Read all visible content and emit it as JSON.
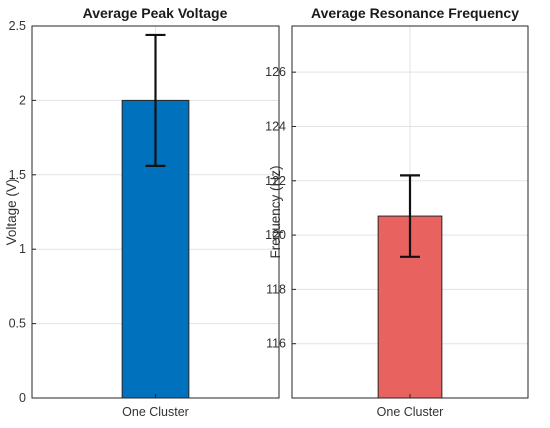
{
  "chart_data": [
    {
      "type": "bar",
      "title": "Average Peak Voltage",
      "xlabel": "",
      "ylabel": "Voltage (V)",
      "categories": [
        "One Cluster"
      ],
      "values": [
        2.0
      ],
      "error": [
        0.44
      ],
      "ylim": [
        0,
        2.5
      ],
      "yticks": [
        0,
        0.5,
        1,
        1.5,
        2,
        2.5
      ],
      "ytick_labels": [
        "0",
        "0.5",
        "1",
        "1.5",
        "2",
        "2.5"
      ],
      "bar_color": "#0072BD",
      "grid": true
    },
    {
      "type": "bar",
      "title": "Average Resonance Frequency",
      "xlabel": "",
      "ylabel": "Frequency (Hz)",
      "categories": [
        "One Cluster"
      ],
      "values": [
        120.7
      ],
      "error": [
        1.5
      ],
      "ylim": [
        114,
        127.7
      ],
      "yticks": [
        116,
        118,
        120,
        122,
        124,
        126
      ],
      "ytick_labels": [
        "116",
        "118",
        "120",
        "122",
        "124",
        "126"
      ],
      "bar_color": "#E8625F",
      "grid": true
    }
  ]
}
